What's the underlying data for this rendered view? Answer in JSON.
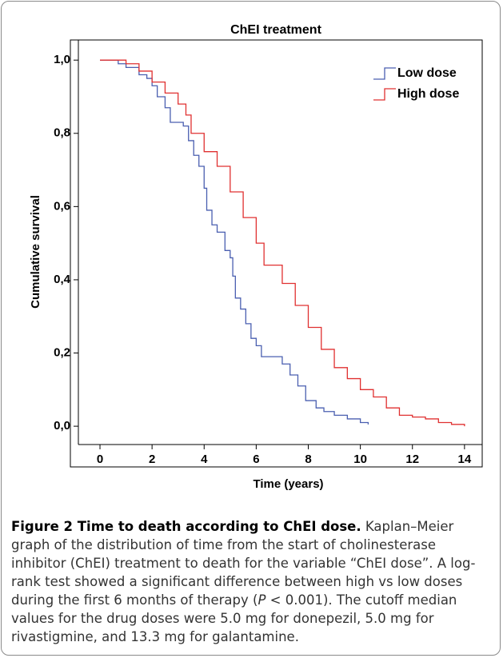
{
  "chart_data": {
    "type": "line",
    "step": true,
    "title": "ChEI treatment",
    "x_label": "Time (years)",
    "y_label": "Cumulative survival",
    "xlim": [
      -0.83,
      14.68
    ],
    "ylim": [
      -0.05,
      1.055
    ],
    "xticks": [
      0,
      2,
      4,
      6,
      8,
      10,
      12,
      14
    ],
    "yticks": [
      {
        "value": 0,
        "label": "0,0"
      },
      {
        "value": 0.2,
        "label": "0,2"
      },
      {
        "value": 0.4,
        "label": "0,4"
      },
      {
        "value": 0.6,
        "label": "0,6"
      },
      {
        "value": 0.8,
        "label": "0,8"
      },
      {
        "value": 1,
        "label": "1,0"
      }
    ],
    "legend": "top-right",
    "series": [
      {
        "name": "Low dose",
        "color": "#4a5fb0",
        "x": [
          0,
          0.5,
          0.7,
          1,
          1.5,
          1.8,
          2,
          2.2,
          2.5,
          2.7,
          3.2,
          3.4,
          3.6,
          3.8,
          4.0,
          4.1,
          4.3,
          4.5,
          4.8,
          5.0,
          5.1,
          5.2,
          5.4,
          5.6,
          5.8,
          6.0,
          6.2,
          7.0,
          7.3,
          7.6,
          7.9,
          8.3,
          8.6,
          9.0,
          9.5,
          10.0,
          10.3
        ],
        "values": [
          1.0,
          1.0,
          0.99,
          0.98,
          0.96,
          0.95,
          0.93,
          0.9,
          0.87,
          0.83,
          0.82,
          0.78,
          0.74,
          0.71,
          0.65,
          0.59,
          0.55,
          0.53,
          0.48,
          0.46,
          0.41,
          0.35,
          0.32,
          0.28,
          0.24,
          0.22,
          0.19,
          0.17,
          0.14,
          0.11,
          0.07,
          0.05,
          0.04,
          0.03,
          0.02,
          0.01,
          0.005
        ]
      },
      {
        "name": "High dose",
        "color": "#e03030",
        "x": [
          0,
          0.7,
          1,
          1.5,
          2,
          2.5,
          3,
          3.3,
          3.5,
          4,
          4.5,
          5,
          5.5,
          6,
          6.3,
          7,
          7.5,
          8,
          8.5,
          9,
          9.5,
          10,
          10.5,
          11,
          11.5,
          12,
          12.5,
          13,
          13.5,
          14
        ],
        "values": [
          1.0,
          1.0,
          0.99,
          0.97,
          0.94,
          0.91,
          0.88,
          0.85,
          0.8,
          0.75,
          0.71,
          0.64,
          0.57,
          0.5,
          0.44,
          0.39,
          0.33,
          0.27,
          0.21,
          0.16,
          0.13,
          0.1,
          0.08,
          0.05,
          0.03,
          0.025,
          0.02,
          0.01,
          0.005,
          0.0
        ]
      }
    ]
  },
  "caption": {
    "title": "Figure 2 Time to death according to ChEI dose.",
    "text_1": "Kaplan–Meier graph of the distribution of time from the start of cholinesterase inhibitor (ChEI) treatment to death for the variable “ChEI dose”. A log-rank test showed a significant difference between high vs low doses during the first 6 months of therapy (",
    "italic": "P",
    "text_2": " < 0.001). The cutoff median values for the drug doses were 5.0 mg for donepezil, 5.0 mg for rivastigmine, and 13.3 mg for galantamine."
  }
}
